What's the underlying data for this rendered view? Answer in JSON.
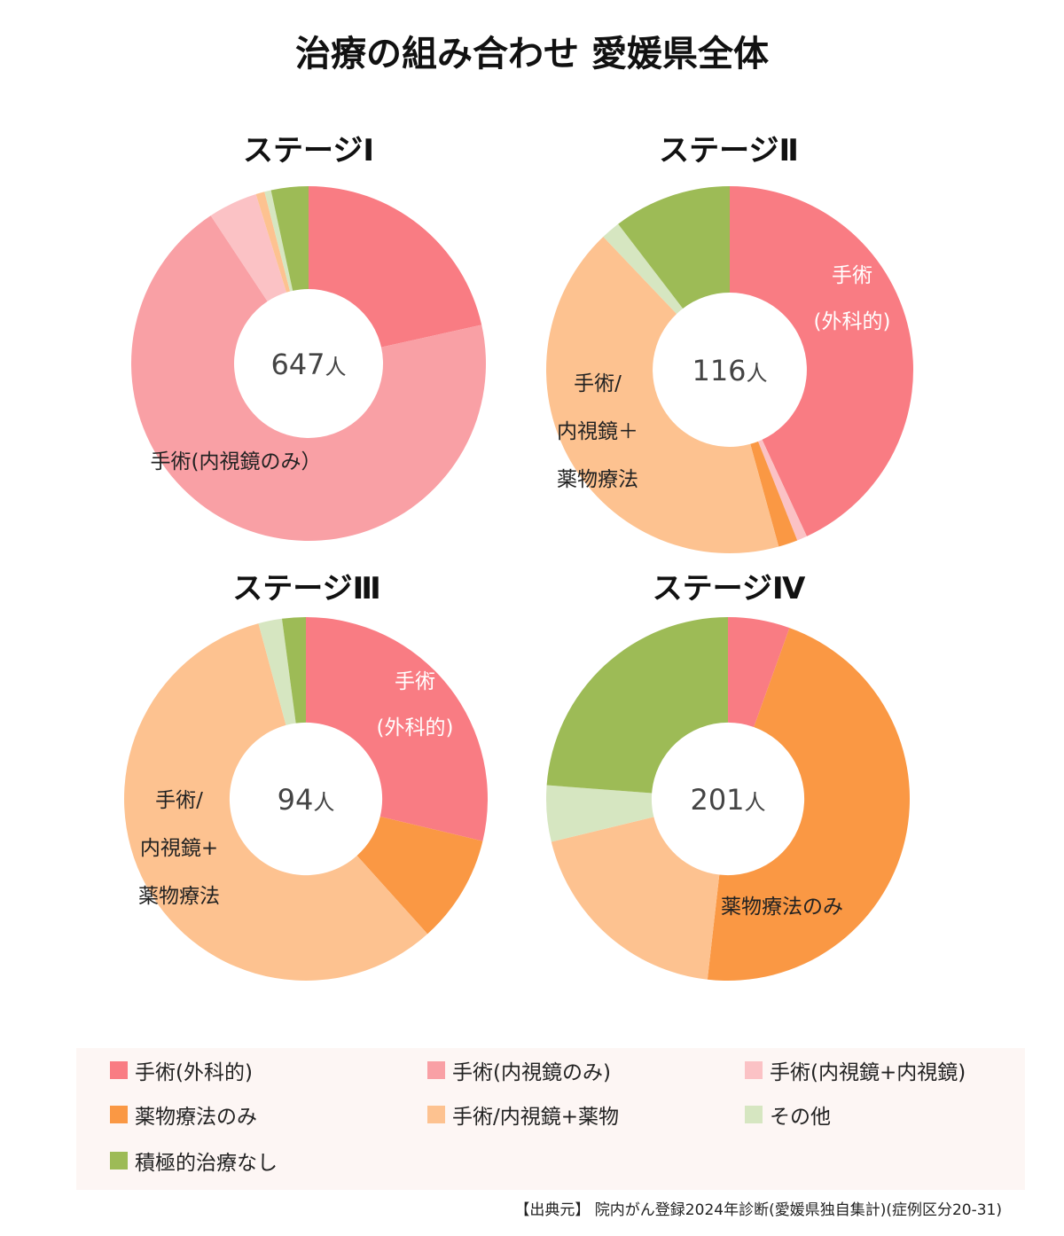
{
  "title": "治療の組み合わせ 愛媛県全体",
  "colors": {
    "surgery": "#f97c83",
    "endoscopy": "#f9a0a5",
    "endo_combo": "#fbc2c5",
    "drug": "#fa9844",
    "surgery_drug": "#fdc290",
    "other": "#d6e6c1",
    "none": "#9dbb56"
  },
  "legend": [
    {
      "key": "surgery",
      "label": "手術(外科的)"
    },
    {
      "key": "endoscopy",
      "label": "手術(内視鏡のみ)"
    },
    {
      "key": "endo_combo",
      "label": "手術(内視鏡+内視鏡)"
    },
    {
      "key": "drug",
      "label": "薬物療法のみ"
    },
    {
      "key": "surgery_drug",
      "label": "手術/内視鏡+薬物"
    },
    {
      "key": "other",
      "label": "その他"
    },
    {
      "key": "none",
      "label": "積極的治療なし"
    }
  ],
  "source": "【出典元】 院内がん登録2024年診断(愛媛県独自集計)(症例区分20-31)",
  "chart_data": [
    {
      "type": "pie",
      "title": "ステージⅠ",
      "total_label": "647",
      "total_unit": "人",
      "categories": [
        "surgery",
        "endoscopy",
        "endo_combo",
        "drug",
        "surgery_drug",
        "other",
        "none"
      ],
      "values": [
        21.5,
        69.2,
        4.5,
        0.0,
        0.8,
        0.6,
        3.4
      ],
      "slice_labels": [
        {
          "index": 1,
          "lines": [
            "手術(内視鏡のみ）"
          ],
          "color": "#222222"
        }
      ]
    },
    {
      "type": "pie",
      "title": "ステージⅡ",
      "total_label": "116",
      "total_unit": "人",
      "categories": [
        "surgery",
        "endoscopy",
        "endo_combo",
        "drug",
        "surgery_drug",
        "other",
        "none"
      ],
      "values": [
        43.1,
        0.0,
        0.9,
        1.7,
        42.2,
        1.7,
        10.4
      ],
      "slice_labels": [
        {
          "index": 0,
          "lines": [
            "手術",
            "(外科的)"
          ],
          "color": "#ffffff"
        },
        {
          "index": 4,
          "lines": [
            "手術/",
            "内視鏡＋",
            "薬物療法"
          ],
          "color": "#222222"
        }
      ]
    },
    {
      "type": "pie",
      "title": "ステージⅢ",
      "total_label": "94",
      "total_unit": "人",
      "categories": [
        "surgery",
        "endoscopy",
        "endo_combo",
        "drug",
        "surgery_drug",
        "other",
        "none"
      ],
      "values": [
        28.7,
        0.0,
        0.0,
        9.6,
        57.4,
        2.1,
        2.1
      ],
      "slice_labels": [
        {
          "index": 0,
          "lines": [
            "手術",
            "(外科的)"
          ],
          "color": "#ffffff"
        },
        {
          "index": 4,
          "lines": [
            "手術/",
            "内視鏡+",
            "薬物療法"
          ],
          "color": "#222222"
        }
      ]
    },
    {
      "type": "pie",
      "title": "ステージⅣ",
      "total_label": "201",
      "total_unit": "人",
      "categories": [
        "surgery",
        "endoscopy",
        "endo_combo",
        "drug",
        "surgery_drug",
        "other",
        "none"
      ],
      "values": [
        5.5,
        0.0,
        0.0,
        46.3,
        19.4,
        5.0,
        23.8
      ],
      "slice_labels": [
        {
          "index": 3,
          "lines": [
            "薬物療法のみ"
          ],
          "color": "#222222"
        }
      ]
    }
  ]
}
